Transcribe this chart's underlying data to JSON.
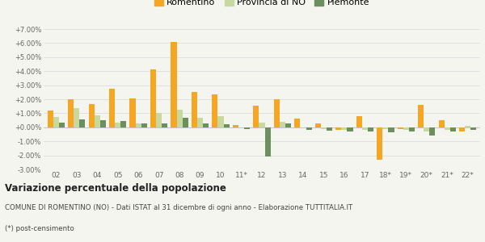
{
  "categories": [
    "02",
    "03",
    "04",
    "05",
    "06",
    "07",
    "08",
    "09",
    "10",
    "11*",
    "12",
    "13",
    "14",
    "15",
    "16",
    "17",
    "18*",
    "19*",
    "20*",
    "21*",
    "22*"
  ],
  "romentino": [
    1.2,
    2.0,
    1.65,
    2.75,
    2.05,
    4.1,
    6.1,
    2.5,
    2.35,
    0.15,
    1.55,
    2.0,
    0.6,
    0.25,
    -0.2,
    0.8,
    -2.3,
    -0.1,
    1.6,
    0.5,
    -0.3
  ],
  "provincia_no": [
    0.75,
    1.35,
    0.85,
    0.35,
    0.3,
    1.05,
    1.25,
    0.7,
    0.8,
    0.0,
    0.35,
    0.4,
    0.0,
    -0.15,
    -0.2,
    -0.2,
    -0.1,
    -0.2,
    -0.3,
    -0.2,
    0.1
  ],
  "piemonte": [
    0.35,
    0.55,
    0.5,
    0.45,
    0.25,
    0.25,
    0.65,
    0.3,
    0.2,
    -0.1,
    -2.1,
    0.3,
    -0.2,
    -0.25,
    -0.3,
    -0.3,
    -0.35,
    -0.3,
    -0.6,
    -0.3,
    -0.2
  ],
  "color_romentino": "#f5a623",
  "color_provincia": "#c8d9a0",
  "color_piemonte": "#6b8f5e",
  "ylim": [
    -3.0,
    7.0
  ],
  "yticks": [
    -3.0,
    -2.0,
    -1.0,
    0.0,
    1.0,
    2.0,
    3.0,
    4.0,
    5.0,
    6.0,
    7.0
  ],
  "title": "Variazione percentuale della popolazione",
  "subtitle": "COMUNE DI ROMENTINO (NO) - Dati ISTAT al 31 dicembre di ogni anno - Elaborazione TUTTITALIA.IT",
  "footnote": "(*) post-censimento",
  "legend_labels": [
    "Romentino",
    "Provincia di NO",
    "Piemonte"
  ],
  "background_color": "#f5f5f0",
  "grid_color": "#dddddd"
}
